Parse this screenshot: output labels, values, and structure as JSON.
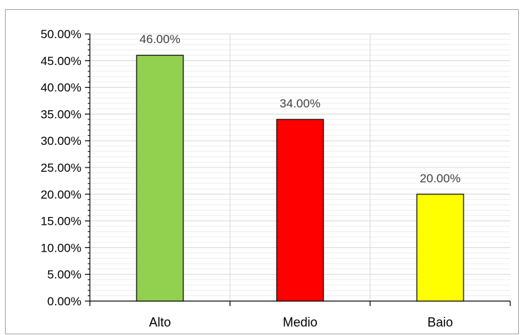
{
  "chart_data": {
    "type": "bar",
    "categories": [
      "Alto",
      "Medio",
      "Baio"
    ],
    "values": [
      46.0,
      34.0,
      20.0
    ],
    "data_labels": [
      "46.00%",
      "34.00%",
      "20.00%"
    ],
    "bar_colors": [
      "#92d050",
      "#ff0000",
      "#ffff00"
    ],
    "bar_border_color": "#000000",
    "y_tick_labels": [
      "0.00%",
      "5.00%",
      "10.00%",
      "15.00%",
      "20.00%",
      "25.00%",
      "30.00%",
      "35.00%",
      "40.00%",
      "45.00%",
      "50.00%"
    ],
    "ylim": [
      0,
      50
    ],
    "y_major_step": 5,
    "y_minor_step": 1,
    "title": "",
    "xlabel": "",
    "ylabel": "",
    "grid": true,
    "legend": "none"
  }
}
